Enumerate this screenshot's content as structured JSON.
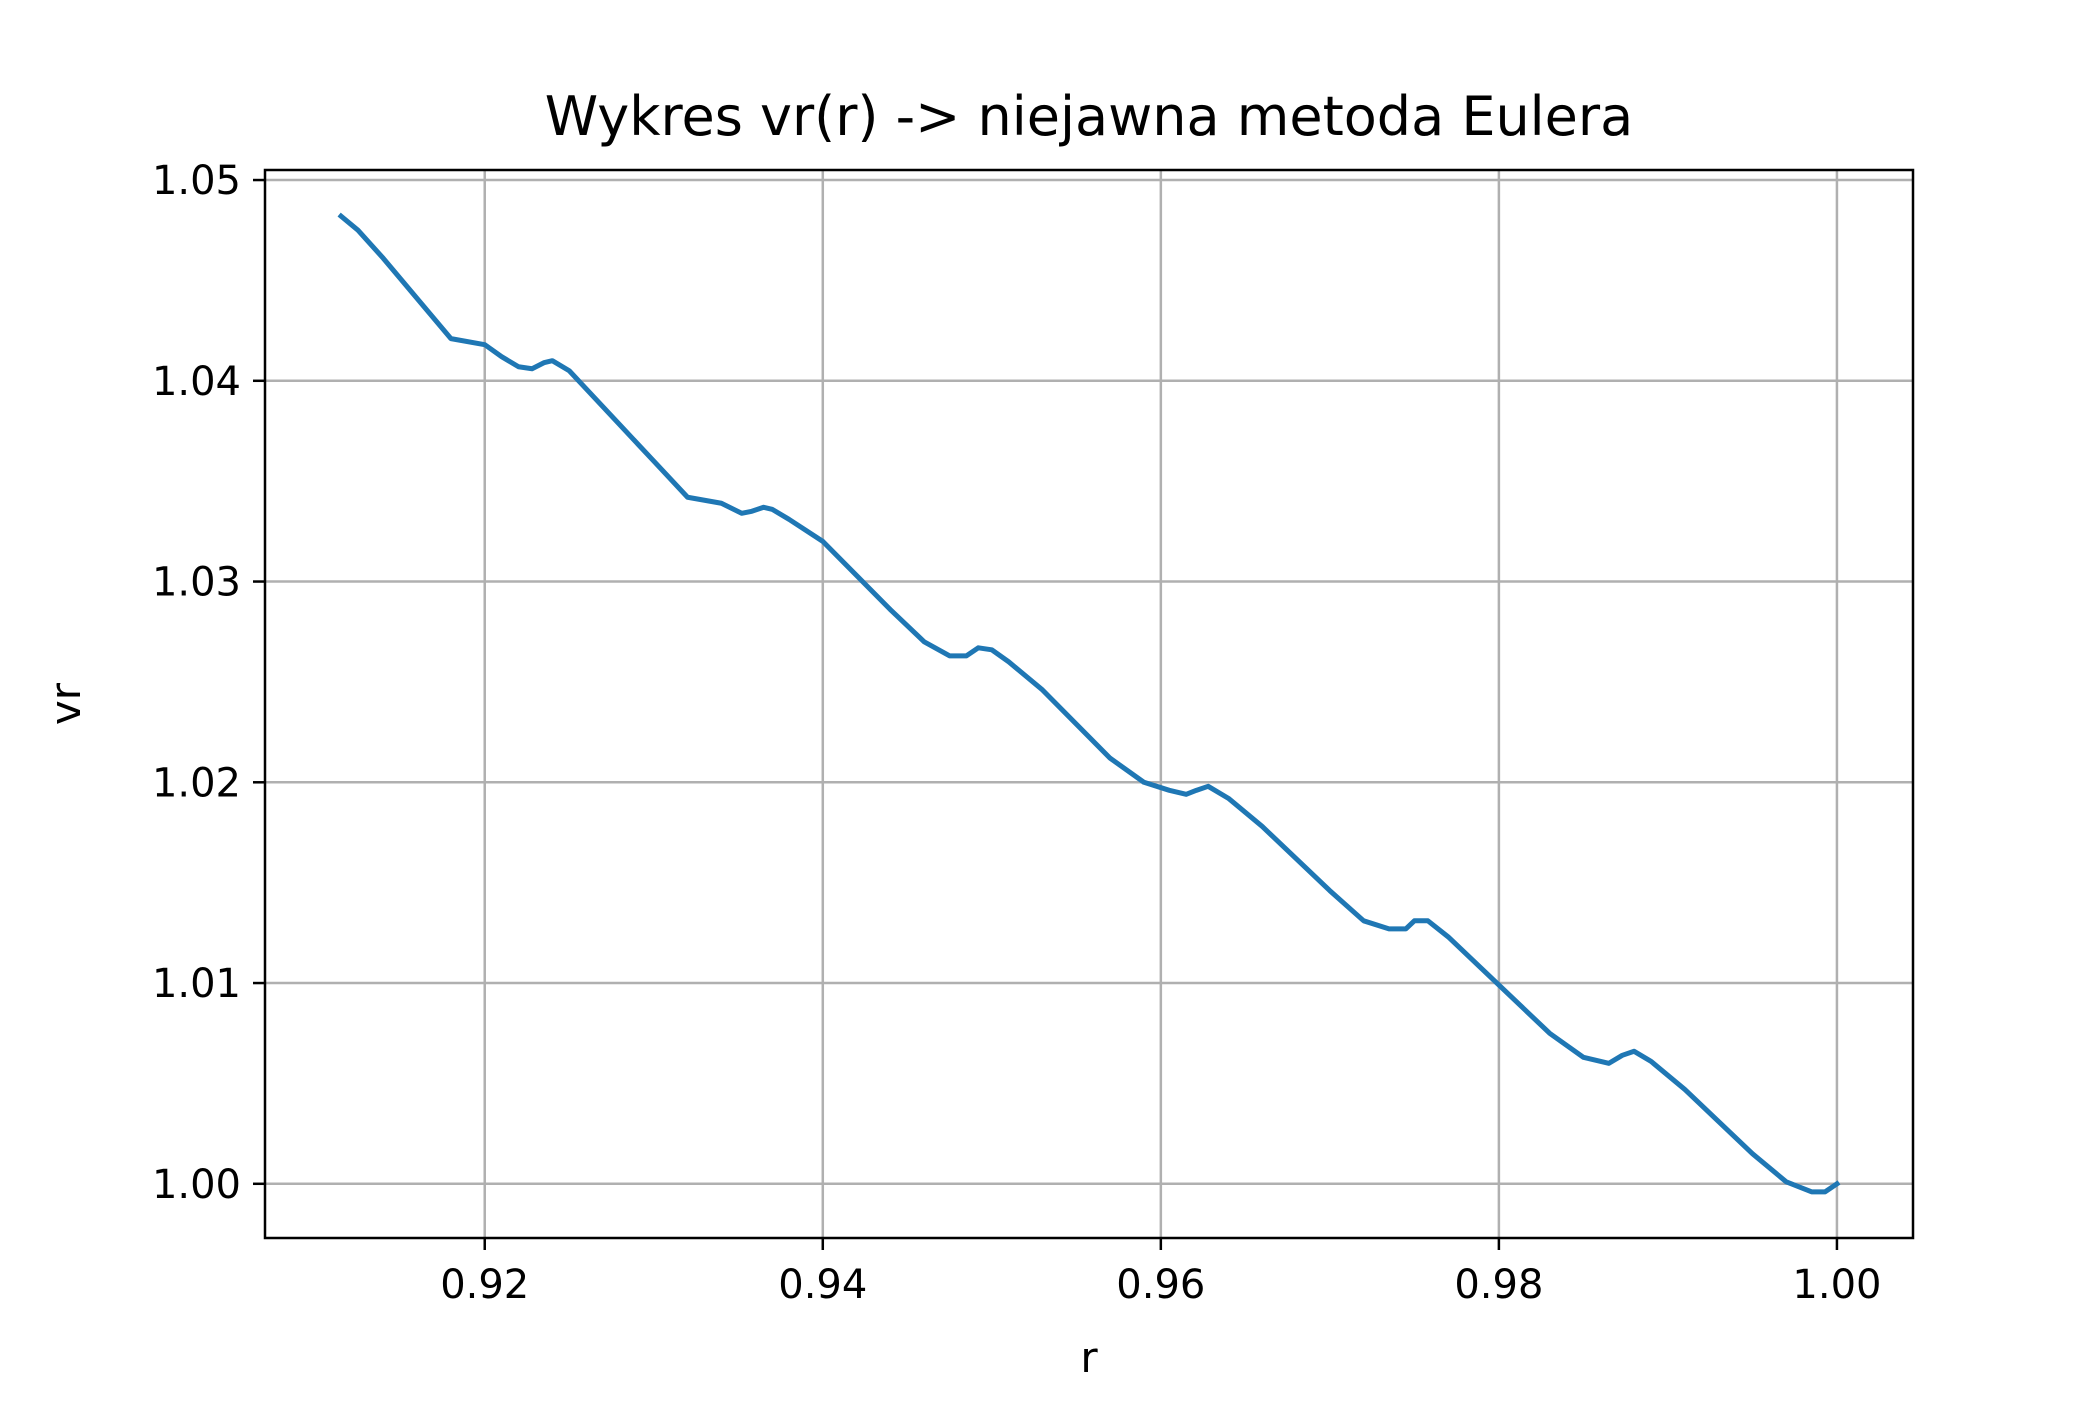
{
  "chart_data": {
    "type": "line",
    "title": "Wykres vr(r) -> niejawna metoda Eulera",
    "xlabel": "r",
    "ylabel": "vr",
    "xlim": [
      0.907,
      1.0045
    ],
    "ylim": [
      0.9973,
      1.0505
    ],
    "xticks": [
      0.92,
      0.94,
      0.96,
      0.98,
      1.0
    ],
    "xtick_labels": [
      "0.92",
      "0.94",
      "0.96",
      "0.98",
      "1.00"
    ],
    "yticks": [
      1.0,
      1.01,
      1.02,
      1.03,
      1.04,
      1.05
    ],
    "ytick_labels": [
      "1.00",
      "1.01",
      "1.02",
      "1.03",
      "1.04",
      "1.05"
    ],
    "grid": true,
    "legend": "none",
    "colors": {
      "line": "#1f77b4",
      "grid": "#b0b0b0",
      "frame": "#000000"
    },
    "series": [
      {
        "x": [
          0.9115,
          0.9125,
          0.914,
          0.916,
          0.918,
          0.92,
          0.921,
          0.922,
          0.9228,
          0.9235,
          0.924,
          0.925,
          0.926,
          0.928,
          0.93,
          0.932,
          0.934,
          0.9352,
          0.9358,
          0.9365,
          0.937,
          0.938,
          0.94,
          0.942,
          0.944,
          0.946,
          0.9475,
          0.9485,
          0.9492,
          0.95,
          0.951,
          0.953,
          0.955,
          0.957,
          0.959,
          0.9605,
          0.9615,
          0.9621,
          0.9628,
          0.964,
          0.966,
          0.968,
          0.97,
          0.972,
          0.9735,
          0.9745,
          0.975,
          0.9758,
          0.977,
          0.979,
          0.981,
          0.983,
          0.985,
          0.9865,
          0.9873,
          0.988,
          0.989,
          0.991,
          0.993,
          0.995,
          0.997,
          0.9985,
          0.9993,
          1.0
        ],
        "y": [
          1.0482,
          1.0475,
          1.0461,
          1.0441,
          1.0421,
          1.0418,
          1.0412,
          1.0407,
          1.0406,
          1.0409,
          1.041,
          1.0405,
          1.0396,
          1.0378,
          1.036,
          1.0342,
          1.0339,
          1.0334,
          1.0335,
          1.0337,
          1.0336,
          1.0331,
          1.032,
          1.0303,
          1.0286,
          1.027,
          1.0263,
          1.0263,
          1.0267,
          1.0266,
          1.026,
          1.0246,
          1.0229,
          1.0212,
          1.02,
          1.0196,
          1.0194,
          1.0196,
          1.0198,
          1.0192,
          1.0178,
          1.0162,
          1.0146,
          1.0131,
          1.0127,
          1.0127,
          1.0131,
          1.0131,
          1.0123,
          1.0107,
          1.0091,
          1.0075,
          1.0063,
          1.006,
          1.0064,
          1.0066,
          1.0061,
          1.0047,
          1.0031,
          1.0015,
          1.0001,
          0.9996,
          0.9996,
          1.0
        ]
      }
    ]
  }
}
